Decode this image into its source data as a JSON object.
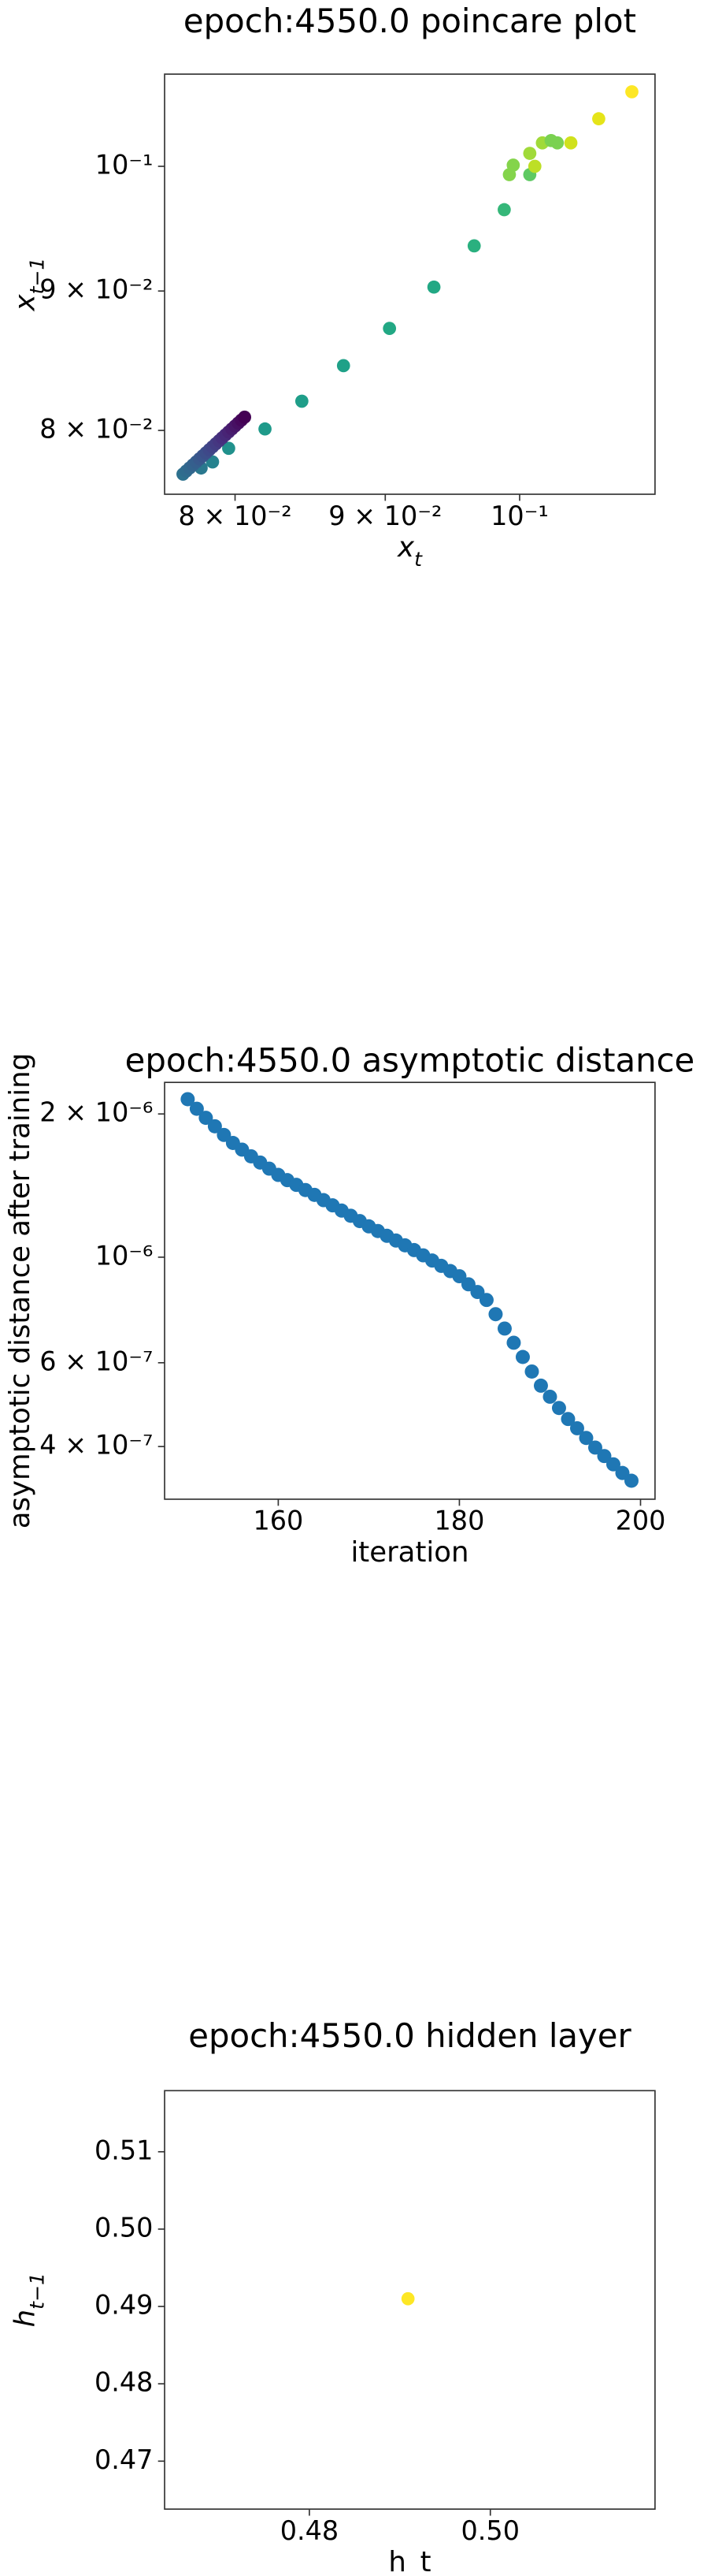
{
  "chart_data": [
    {
      "type": "scatter",
      "title": "epoch:4550.0 poincare plot",
      "xlabel": {
        "text": "x",
        "sub": "t"
      },
      "ylabel": {
        "text": "x",
        "sub": "t−1"
      },
      "xscale": "log",
      "yscale": "log",
      "xlim": [
        0.0757,
        0.1112
      ],
      "ylim": [
        0.0758,
        0.1081
      ],
      "xticks": [
        {
          "value": 0.08,
          "label": "8 × 10⁻²"
        },
        {
          "value": 0.09,
          "label": "9 × 10⁻²"
        },
        {
          "value": 0.1,
          "label": "10⁻¹"
        }
      ],
      "yticks": [
        {
          "value": 0.08,
          "label": "8 × 10⁻²"
        },
        {
          "value": 0.09,
          "label": "9 × 10⁻²"
        },
        {
          "value": 0.1,
          "label": "10⁻¹"
        }
      ],
      "x": [
        0.0786,
        0.0779,
        0.0796,
        0.0819,
        0.0843,
        0.0871,
        0.0903,
        0.0935,
        0.0965,
        0.0988,
        0.1008,
        0.0992,
        0.0995,
        0.1008,
        0.1018,
        0.1025,
        0.103,
        0.1012,
        0.1041,
        0.1064,
        0.1092,
        0.0768,
        0.077,
        0.0772,
        0.0774,
        0.0776,
        0.0778,
        0.078,
        0.0782,
        0.0784,
        0.0786,
        0.0788,
        0.079,
        0.0792,
        0.0794,
        0.0796,
        0.0798,
        0.08,
        0.0802,
        0.0804,
        0.0806
      ],
      "values": [
        0.0779,
        0.0775,
        0.0788,
        0.0801,
        0.082,
        0.0845,
        0.0872,
        0.0903,
        0.0935,
        0.0964,
        0.0993,
        0.0993,
        0.1001,
        0.1011,
        0.102,
        0.1022,
        0.102,
        0.1,
        0.102,
        0.1041,
        0.1065,
        0.0771,
        0.0773,
        0.0775,
        0.0777,
        0.0779,
        0.0781,
        0.0783,
        0.0785,
        0.0787,
        0.0789,
        0.0791,
        0.0793,
        0.0795,
        0.0797,
        0.0799,
        0.0801,
        0.0803,
        0.0805,
        0.0807,
        0.0809
      ],
      "colors": [
        "#26828e",
        "#2a788e",
        "#21918c",
        "#1f9a8a",
        "#1f9e89",
        "#1fa188",
        "#22a884",
        "#22a884",
        "#2ab07f",
        "#35b779",
        "#5ec962",
        "#84d44b",
        "#84d44b",
        "#a0da39",
        "#a0da39",
        "#7ad151",
        "#7ad151",
        "#bddf26",
        "#d0e11c",
        "#e5e419",
        "#fde725",
        "#2d718e",
        "#2f6c8e",
        "#31688e",
        "#33638d",
        "#355f8d",
        "#38598c",
        "#3a548c",
        "#3c4f8a",
        "#3e4989",
        "#414487",
        "#433d84",
        "#453781",
        "#46307e",
        "#472a7a",
        "#482475",
        "#481d6f",
        "#481769",
        "#471063",
        "#46085c",
        "#440154"
      ]
    },
    {
      "type": "scatter",
      "title": "epoch:4550.0 asymptotic distance",
      "xlabel": "iteration",
      "ylabel": "asymptotic distance after training",
      "xscale": "linear",
      "yscale": "log",
      "xlim": [
        147.45,
        201.6
      ],
      "ylim": [
        3.1e-07,
        2.33e-06
      ],
      "xticks": [
        160,
        180,
        200
      ],
      "yticks": [
        {
          "value": 2e-06,
          "label": "2 × 10⁻⁶"
        },
        {
          "value": 1e-06,
          "label": "10⁻⁶"
        },
        {
          "value": 6e-07,
          "label": "6 × 10⁻⁷"
        },
        {
          "value": 4e-07,
          "label": "4 × 10⁻⁷"
        }
      ],
      "color": "#1f77b4",
      "x": [
        150,
        151,
        152,
        153,
        154,
        155,
        156,
        157,
        158,
        159,
        160,
        161,
        162,
        163,
        164,
        165,
        166,
        167,
        168,
        169,
        170,
        171,
        172,
        173,
        174,
        175,
        176,
        177,
        178,
        179,
        180,
        181,
        182,
        183,
        184,
        185,
        186,
        187,
        188,
        189,
        190,
        191,
        192,
        193,
        194,
        195,
        196,
        197,
        198,
        199
      ],
      "values": [
        2.148e-06,
        2.051e-06,
        1.963e-06,
        1.884e-06,
        1.807e-06,
        1.738e-06,
        1.683e-06,
        1.629e-06,
        1.581e-06,
        1.535e-06,
        1.489e-06,
        1.452e-06,
        1.419e-06,
        1.384e-06,
        1.352e-06,
        1.318e-06,
        1.285e-06,
        1.253e-06,
        1.222e-06,
        1.191e-06,
        1.161e-06,
        1.135e-06,
        1.109e-06,
        1.084e-06,
        1.059e-06,
        1.035e-06,
        1.009e-06,
        9.84e-07,
        9.59e-07,
        9.35e-07,
        9.12e-07,
        8.77e-07,
        8.45e-07,
        8.13e-07,
        7.59e-07,
        7.08e-07,
        6.61e-07,
        6.17e-07,
        5.75e-07,
        5.37e-07,
        5.09e-07,
        4.82e-07,
        4.57e-07,
        4.37e-07,
        4.17e-07,
        3.98e-07,
        3.82e-07,
        3.67e-07,
        3.52e-07,
        3.39e-07
      ]
    },
    {
      "type": "scatter",
      "title": "epoch:4550.0 hidden layer",
      "xlabel": "h_t",
      "ylabel": {
        "text": "h",
        "sub": "t−1"
      },
      "xscale": "linear",
      "yscale": "linear",
      "xlim": [
        0.464,
        0.5182
      ],
      "ylim": [
        0.4638,
        0.5179
      ],
      "xticks": [
        0.48,
        0.5
      ],
      "xtick_labels": [
        "0.48",
        "0.50"
      ],
      "yticks": [
        0.47,
        0.48,
        0.49,
        {
          "value": 0.5,
          "label": "0.50"
        },
        0.51
      ],
      "color": "#fde725",
      "x": [
        0.4909
      ],
      "values": [
        0.491
      ]
    }
  ]
}
